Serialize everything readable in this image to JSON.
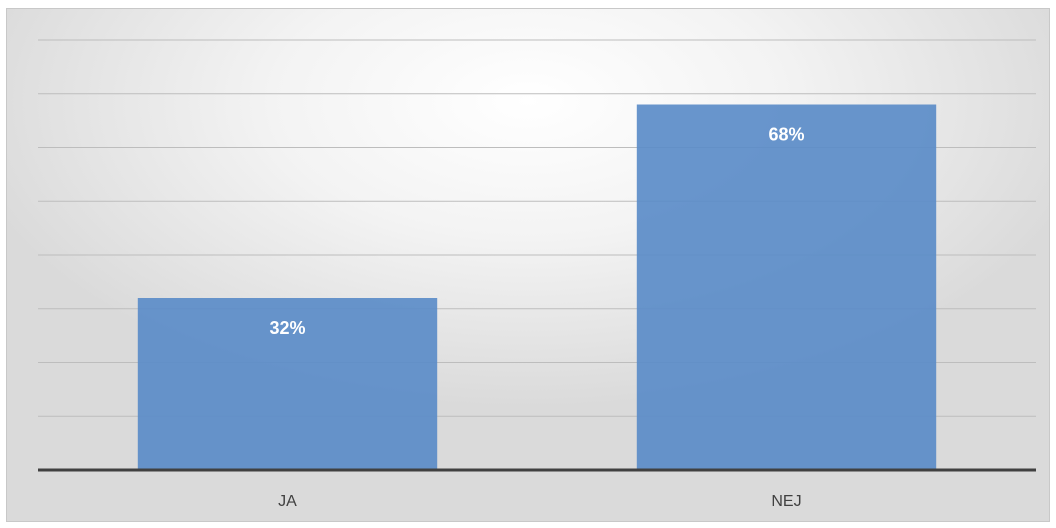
{
  "chart_data": {
    "type": "bar",
    "categories": [
      "JA",
      "NEJ"
    ],
    "values": [
      32,
      68
    ],
    "value_labels": [
      "32%",
      "68%"
    ],
    "title": "",
    "xlabel": "",
    "ylabel": "",
    "ylim": [
      0,
      80
    ],
    "grid": true,
    "legend": "none",
    "bar_color": "#5b8cc8"
  }
}
